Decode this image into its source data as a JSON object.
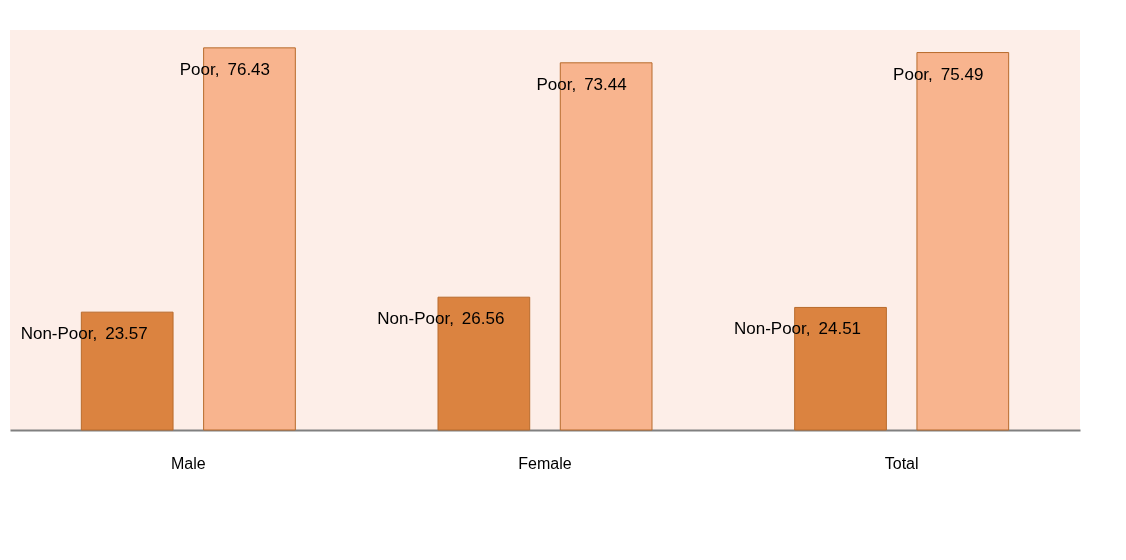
{
  "chart_data": {
    "type": "bar",
    "categories": [
      "Male",
      "Female",
      "Total"
    ],
    "series": [
      {
        "name": "Non-Poor,",
        "color": "#db8340",
        "values": [
          23.57,
          26.56,
          24.51
        ]
      },
      {
        "name": "Poor,",
        "color": "#f8b48e",
        "values": [
          76.43,
          73.44,
          75.49
        ]
      }
    ],
    "tick_labels": "x",
    "data_labels": true,
    "grid": false,
    "legend": false
  }
}
